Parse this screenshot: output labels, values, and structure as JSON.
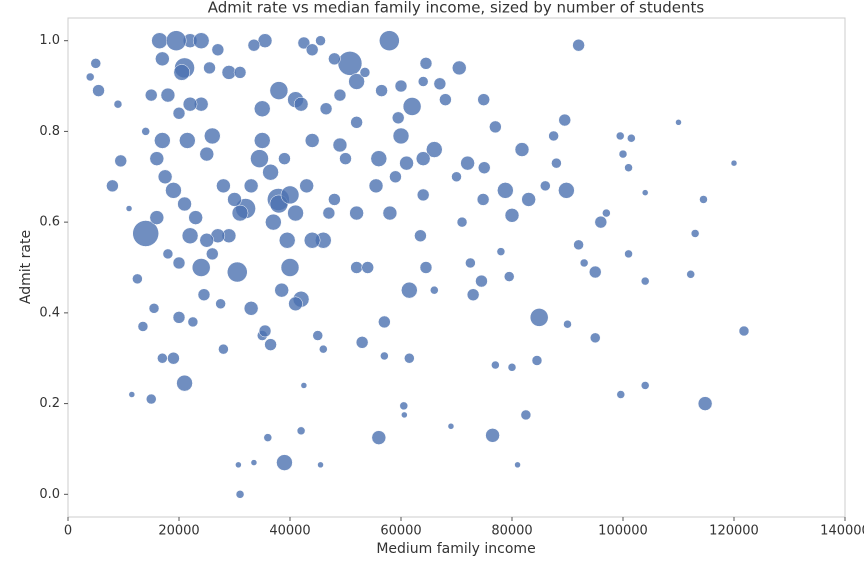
{
  "chart_data": {
    "type": "scatter",
    "title": "Admit rate vs median family income, sized by number of students",
    "xlabel": "Medium family income",
    "ylabel": "Admit rate",
    "color": "#4c72b0",
    "xlim": [
      0,
      140000
    ],
    "xticks": [
      0,
      20000,
      40000,
      60000,
      80000,
      100000,
      120000,
      140000
    ],
    "ylim": [
      -0.05,
      1.05
    ],
    "yticks": [
      {
        "value": 0,
        "label": "0.0"
      },
      0.2,
      0.4,
      0.6,
      0.8,
      {
        "value": 1,
        "label": "1.0"
      }
    ],
    "x": [
      14000,
      39000,
      57900,
      50800,
      21000,
      76500,
      84900,
      56000,
      62000,
      61500,
      21000,
      89800,
      83000,
      92000,
      114800,
      121800,
      30500,
      37900,
      38000,
      24000,
      16500,
      35500,
      22000,
      42500,
      45500,
      5500,
      8000,
      13500,
      15000,
      19000,
      31000,
      30700,
      45500,
      60500,
      60600,
      53000,
      57000,
      61500,
      69000,
      81000,
      82500,
      84500,
      95000,
      99600,
      104000,
      113000,
      112200,
      101000,
      104000,
      95000,
      96000,
      97000,
      92000,
      90000,
      89500,
      99500,
      101500,
      100000,
      101000,
      120000,
      114500,
      110000,
      104000,
      70500,
      67000,
      64500,
      74900,
      77000,
      81800,
      78800,
      80000,
      72000,
      75000,
      74800,
      74500,
      73000,
      72500,
      71000,
      70000,
      68000,
      66000,
      64000,
      60000,
      56000,
      55500,
      58000,
      59000,
      61000,
      64000,
      63500,
      64500,
      66000,
      57000,
      52000,
      54000,
      52000,
      50000,
      49000,
      48000,
      47000,
      46000,
      44000,
      42000,
      40000,
      41000,
      43000,
      44000,
      46500,
      49000,
      52000,
      48000,
      44000,
      41000,
      42000,
      35000,
      34500,
      35000,
      36500,
      33000,
      32000,
      31000,
      30000,
      29000,
      27000,
      28000,
      26000,
      25000,
      24000,
      22000,
      20000,
      18000,
      17000,
      15000,
      14000,
      16000,
      17500,
      19000,
      21000,
      21500,
      22000,
      23000,
      25000,
      26000,
      24500,
      20000,
      18000,
      16000,
      15500,
      12500,
      20000,
      22500,
      27500,
      28000,
      33000,
      35000,
      36500,
      35500,
      38500,
      41000,
      42500,
      45000,
      46000,
      33500,
      36000,
      42000,
      38000,
      40000,
      39500,
      39000,
      37000,
      9500,
      9000,
      5000,
      4000,
      11000,
      11500,
      17000,
      29000,
      31000,
      33500,
      27000,
      19500,
      24000,
      20500,
      17000,
      25500,
      52000,
      53500,
      56500,
      59500,
      60000,
      64000,
      78000,
      79500,
      80000,
      77000,
      93000,
      86000,
      88000,
      87500
    ],
    "y": [
      0.575,
      0.07,
      1.0,
      0.95,
      0.245,
      0.13,
      0.39,
      0.125,
      0.855,
      0.45,
      0.94,
      0.67,
      0.65,
      0.99,
      0.2,
      0.36,
      0.49,
      0.65,
      0.89,
      0.5,
      1.0,
      1.0,
      1.0,
      0.995,
      1.0,
      0.89,
      0.68,
      0.37,
      0.21,
      0.3,
      0.0,
      0.065,
      0.065,
      0.195,
      0.175,
      0.335,
      0.305,
      0.3,
      0.15,
      0.065,
      0.175,
      0.295,
      0.345,
      0.22,
      0.24,
      0.575,
      0.485,
      0.53,
      0.47,
      0.49,
      0.6,
      0.62,
      0.55,
      0.375,
      0.825,
      0.79,
      0.785,
      0.75,
      0.72,
      0.73,
      0.65,
      0.82,
      0.665,
      0.94,
      0.905,
      0.95,
      0.87,
      0.81,
      0.76,
      0.67,
      0.615,
      0.73,
      0.72,
      0.65,
      0.47,
      0.44,
      0.51,
      0.6,
      0.7,
      0.87,
      0.76,
      0.74,
      0.79,
      0.74,
      0.68,
      0.62,
      0.7,
      0.73,
      0.66,
      0.57,
      0.5,
      0.45,
      0.38,
      0.5,
      0.5,
      0.62,
      0.74,
      0.77,
      0.65,
      0.62,
      0.56,
      0.56,
      0.43,
      0.5,
      0.62,
      0.68,
      0.78,
      0.85,
      0.88,
      0.91,
      0.96,
      0.98,
      0.87,
      0.86,
      0.85,
      0.74,
      0.78,
      0.71,
      0.68,
      0.63,
      0.62,
      0.65,
      0.57,
      0.57,
      0.68,
      0.79,
      0.75,
      0.86,
      0.86,
      0.84,
      0.88,
      0.78,
      0.88,
      0.8,
      0.74,
      0.7,
      0.67,
      0.64,
      0.78,
      0.57,
      0.61,
      0.56,
      0.53,
      0.44,
      0.51,
      0.53,
      0.61,
      0.41,
      0.475,
      0.39,
      0.38,
      0.42,
      0.32,
      0.41,
      0.35,
      0.33,
      0.36,
      0.45,
      0.42,
      0.24,
      0.35,
      0.32,
      0.07,
      0.125,
      0.14,
      0.64,
      0.66,
      0.56,
      0.74,
      0.6,
      0.735,
      0.86,
      0.95,
      0.92,
      0.63,
      0.22,
      0.3,
      0.93,
      0.93,
      0.99,
      0.98,
      1.0,
      1.0,
      0.93,
      0.96,
      0.94,
      0.82,
      0.93,
      0.89,
      0.83,
      0.9,
      0.91,
      0.535,
      0.48,
      0.28,
      0.285,
      0.51,
      0.68,
      0.73,
      0.79
    ],
    "sizes": [
      169,
      64,
      100,
      144,
      64,
      49,
      81,
      49,
      81,
      64,
      100,
      64,
      49,
      36,
      49,
      25,
      100,
      121,
      81,
      81,
      64,
      49,
      49,
      36,
      25,
      36,
      36,
      25,
      25,
      36,
      16,
      9,
      9,
      16,
      9,
      36,
      16,
      25,
      9,
      9,
      25,
      25,
      25,
      16,
      16,
      16,
      16,
      16,
      16,
      36,
      36,
      16,
      25,
      16,
      36,
      16,
      16,
      16,
      16,
      9,
      16,
      9,
      9,
      49,
      36,
      36,
      36,
      36,
      49,
      64,
      49,
      49,
      36,
      36,
      36,
      36,
      25,
      25,
      25,
      36,
      64,
      49,
      64,
      64,
      49,
      49,
      36,
      49,
      36,
      36,
      36,
      16,
      36,
      36,
      36,
      49,
      36,
      49,
      36,
      36,
      64,
      64,
      64,
      81,
      64,
      49,
      49,
      36,
      36,
      64,
      36,
      36,
      64,
      49,
      64,
      81,
      64,
      64,
      49,
      100,
      64,
      49,
      49,
      49,
      49,
      64,
      49,
      49,
      49,
      36,
      49,
      64,
      36,
      16,
      49,
      49,
      64,
      49,
      64,
      64,
      49,
      49,
      36,
      36,
      36,
      25,
      49,
      25,
      25,
      36,
      25,
      25,
      25,
      49,
      25,
      36,
      36,
      49,
      49,
      9,
      25,
      16,
      9,
      16,
      16,
      81,
      81,
      64,
      36,
      64,
      36,
      16,
      25,
      16,
      9,
      9,
      25,
      49,
      36,
      36,
      36,
      100,
      64,
      64,
      49,
      36,
      36,
      25,
      36,
      36,
      36,
      25,
      16,
      25,
      16,
      16,
      16,
      25,
      25,
      25
    ]
  }
}
